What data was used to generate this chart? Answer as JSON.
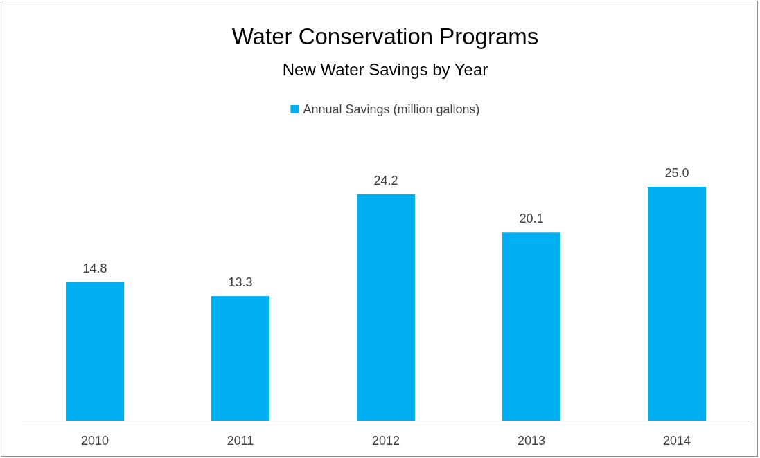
{
  "chart_data": {
    "type": "bar",
    "title": "Water Conservation Programs",
    "subtitle": "New Water Savings by Year",
    "categories": [
      "2010",
      "2011",
      "2012",
      "2013",
      "2014"
    ],
    "series": [
      {
        "name": "Annual Savings (million gallons)",
        "color": "#00b0f0",
        "values": [
          14.8,
          13.3,
          24.2,
          20.1,
          25.0
        ],
        "value_labels": [
          "14.8",
          "13.3",
          "24.2",
          "20.1",
          "25.0"
        ]
      }
    ],
    "legend": "top",
    "grid": false
  }
}
